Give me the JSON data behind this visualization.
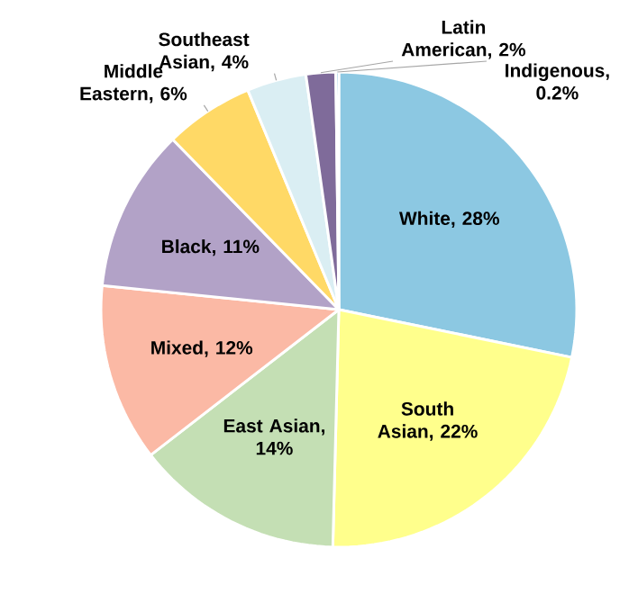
{
  "chart_data": {
    "type": "pie",
    "categories": [
      "White",
      "South Asian",
      "East Asian",
      "Mixed",
      "Black",
      "Middle Eastern",
      "Southeast Asian",
      "Latin American",
      "Indigenous"
    ],
    "values": [
      28,
      22,
      14,
      12,
      11,
      6,
      4,
      2,
      0.2
    ],
    "value_labels": [
      ", 28%",
      ", 22%",
      ", 14%",
      ", 12%",
      ", 11%",
      ", 6%",
      ", 4%",
      ", 2%",
      ", 0.2%"
    ],
    "colors": [
      "#8cc8e2",
      "#ffff8c",
      "#c4dfb4",
      "#fbb9a5",
      "#b2a2c7",
      "#ffd966",
      "#daeef3",
      "#7f6b9a",
      "#4aa3d0"
    ]
  }
}
